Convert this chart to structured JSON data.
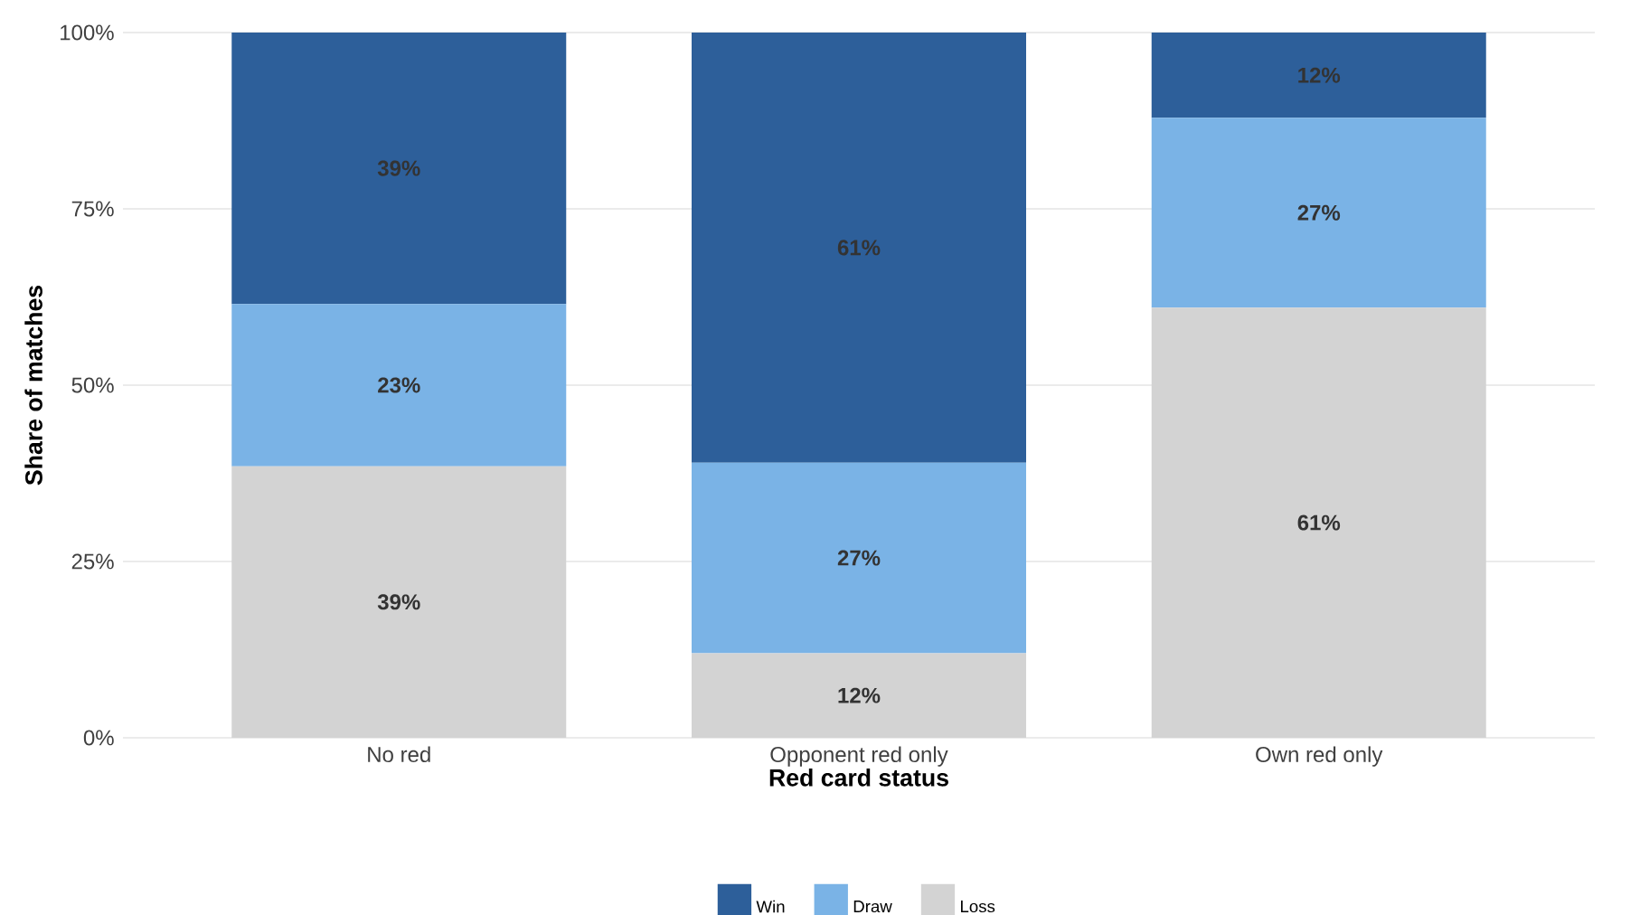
{
  "chart_data": {
    "type": "bar",
    "stacked": true,
    "xlabel": "Red card status",
    "ylabel": "Share of matches",
    "categories": [
      "No red",
      "Opponent red only",
      "Own red only"
    ],
    "series": [
      {
        "name": "Loss",
        "color": "#d3d3d3",
        "values": [
          38.5,
          12,
          61
        ],
        "value_labels": [
          "39%",
          "12%",
          "61%"
        ]
      },
      {
        "name": "Draw",
        "color": "#7ab3e6",
        "values": [
          23,
          27,
          26.9
        ],
        "value_labels": [
          "23%",
          "27%",
          "27%"
        ]
      },
      {
        "name": "Win",
        "color": "#2d5f9a",
        "values": [
          38.5,
          61,
          12.1
        ],
        "value_labels": [
          "39%",
          "61%",
          "12%"
        ]
      }
    ],
    "ylim": [
      0,
      100
    ],
    "yticks": [
      {
        "value": 0,
        "label": "0%"
      },
      {
        "value": 25,
        "label": "25%"
      },
      {
        "value": 50,
        "label": "50%"
      },
      {
        "value": 75,
        "label": "75%"
      },
      {
        "value": 100,
        "label": "100%"
      }
    ],
    "grid": "y",
    "legend": "bottom"
  }
}
